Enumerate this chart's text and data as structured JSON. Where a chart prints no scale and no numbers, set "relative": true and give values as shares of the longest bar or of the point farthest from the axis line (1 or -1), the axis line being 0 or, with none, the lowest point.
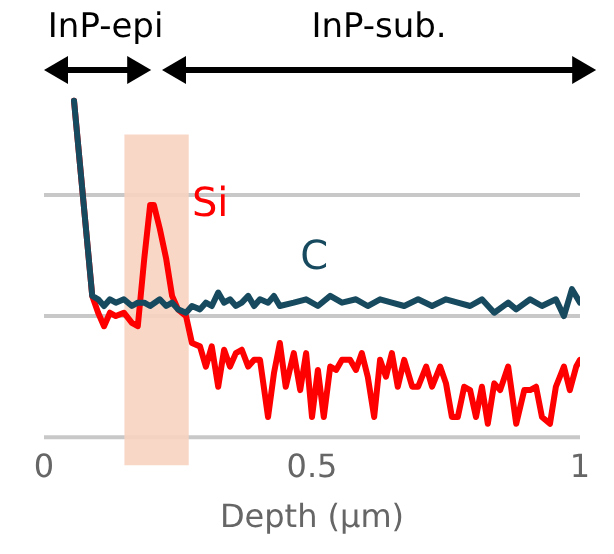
{
  "chart_data": {
    "type": "line",
    "xlabel": "Depth (μm)",
    "xlim": [
      0,
      1
    ],
    "xticks": [
      0,
      0.5,
      1
    ],
    "relative": true,
    "ref_lines": [
      {
        "axis": "y",
        "value": 0,
        "color": "#c8c8c8"
      },
      {
        "axis": "y",
        "value": 0.36,
        "color": "#c8c8c8"
      },
      {
        "axis": "y",
        "value": 0.72,
        "color": "#c8c8c8"
      }
    ],
    "legend": false,
    "marker": "none",
    "line_style": "solid",
    "annotations": [
      "InP-epi",
      "InP-sub."
    ],
    "bands": [
      {
        "axis": "x",
        "from": 0.15,
        "to": 0.27,
        "color": "#f8d3c0"
      }
    ],
    "series": [
      {
        "name": "Si",
        "color": "#ff0000",
        "x": [
          0.056,
          0.09,
          0.101,
          0.112,
          0.123,
          0.134,
          0.149,
          0.164,
          0.175,
          0.187,
          0.198,
          0.205,
          0.216,
          0.228,
          0.239,
          0.25,
          0.265,
          0.276,
          0.291,
          0.302,
          0.313,
          0.325,
          0.336,
          0.347,
          0.358,
          0.369,
          0.381,
          0.392,
          0.403,
          0.418,
          0.429,
          0.44,
          0.451,
          0.466,
          0.478,
          0.489,
          0.5,
          0.511,
          0.522,
          0.534,
          0.545,
          0.556,
          0.571,
          0.582,
          0.593,
          0.604,
          0.616,
          0.627,
          0.638,
          0.649,
          0.66,
          0.672,
          0.687,
          0.698,
          0.713,
          0.724,
          0.739,
          0.75,
          0.761,
          0.772,
          0.784,
          0.795,
          0.806,
          0.817,
          0.828,
          0.84,
          0.851,
          0.866,
          0.881,
          0.896,
          0.907,
          0.918,
          0.929,
          0.944,
          0.955,
          0.97,
          0.981,
          0.993,
          1.0
        ],
        "values": [
          1.0,
          0.42,
          0.37,
          0.33,
          0.37,
          0.36,
          0.37,
          0.34,
          0.33,
          0.53,
          0.69,
          0.69,
          0.62,
          0.53,
          0.42,
          0.38,
          0.36,
          0.28,
          0.27,
          0.21,
          0.27,
          0.15,
          0.26,
          0.21,
          0.25,
          0.26,
          0.21,
          0.23,
          0.23,
          0.06,
          0.19,
          0.28,
          0.15,
          0.25,
          0.14,
          0.25,
          0.06,
          0.2,
          0.06,
          0.21,
          0.2,
          0.23,
          0.23,
          0.2,
          0.25,
          0.18,
          0.06,
          0.23,
          0.18,
          0.25,
          0.15,
          0.23,
          0.15,
          0.15,
          0.21,
          0.15,
          0.21,
          0.16,
          0.06,
          0.06,
          0.15,
          0.14,
          0.06,
          0.15,
          0.04,
          0.16,
          0.14,
          0.21,
          0.04,
          0.14,
          0.14,
          0.15,
          0.06,
          0.04,
          0.15,
          0.21,
          0.14,
          0.21,
          0.23
        ]
      },
      {
        "name": "C",
        "color": "#174a5e",
        "x": [
          0.056,
          0.09,
          0.101,
          0.112,
          0.123,
          0.134,
          0.149,
          0.164,
          0.175,
          0.187,
          0.198,
          0.216,
          0.228,
          0.239,
          0.25,
          0.265,
          0.276,
          0.291,
          0.302,
          0.313,
          0.325,
          0.336,
          0.347,
          0.358,
          0.369,
          0.381,
          0.392,
          0.403,
          0.418,
          0.429,
          0.44,
          0.466,
          0.489,
          0.511,
          0.534,
          0.556,
          0.582,
          0.604,
          0.627,
          0.649,
          0.672,
          0.698,
          0.724,
          0.75,
          0.772,
          0.795,
          0.817,
          0.84,
          0.866,
          0.881,
          0.907,
          0.929,
          0.955,
          0.97,
          0.985,
          1.0
        ],
        "values": [
          1.0,
          0.42,
          0.41,
          0.39,
          0.41,
          0.4,
          0.41,
          0.39,
          0.4,
          0.4,
          0.39,
          0.41,
          0.39,
          0.4,
          0.38,
          0.37,
          0.39,
          0.38,
          0.4,
          0.39,
          0.43,
          0.4,
          0.41,
          0.39,
          0.4,
          0.42,
          0.39,
          0.41,
          0.4,
          0.42,
          0.39,
          0.4,
          0.41,
          0.39,
          0.42,
          0.4,
          0.41,
          0.39,
          0.41,
          0.4,
          0.39,
          0.41,
          0.39,
          0.41,
          0.4,
          0.39,
          0.41,
          0.37,
          0.4,
          0.38,
          0.41,
          0.39,
          0.41,
          0.36,
          0.44,
          0.4
        ]
      }
    ]
  }
}
